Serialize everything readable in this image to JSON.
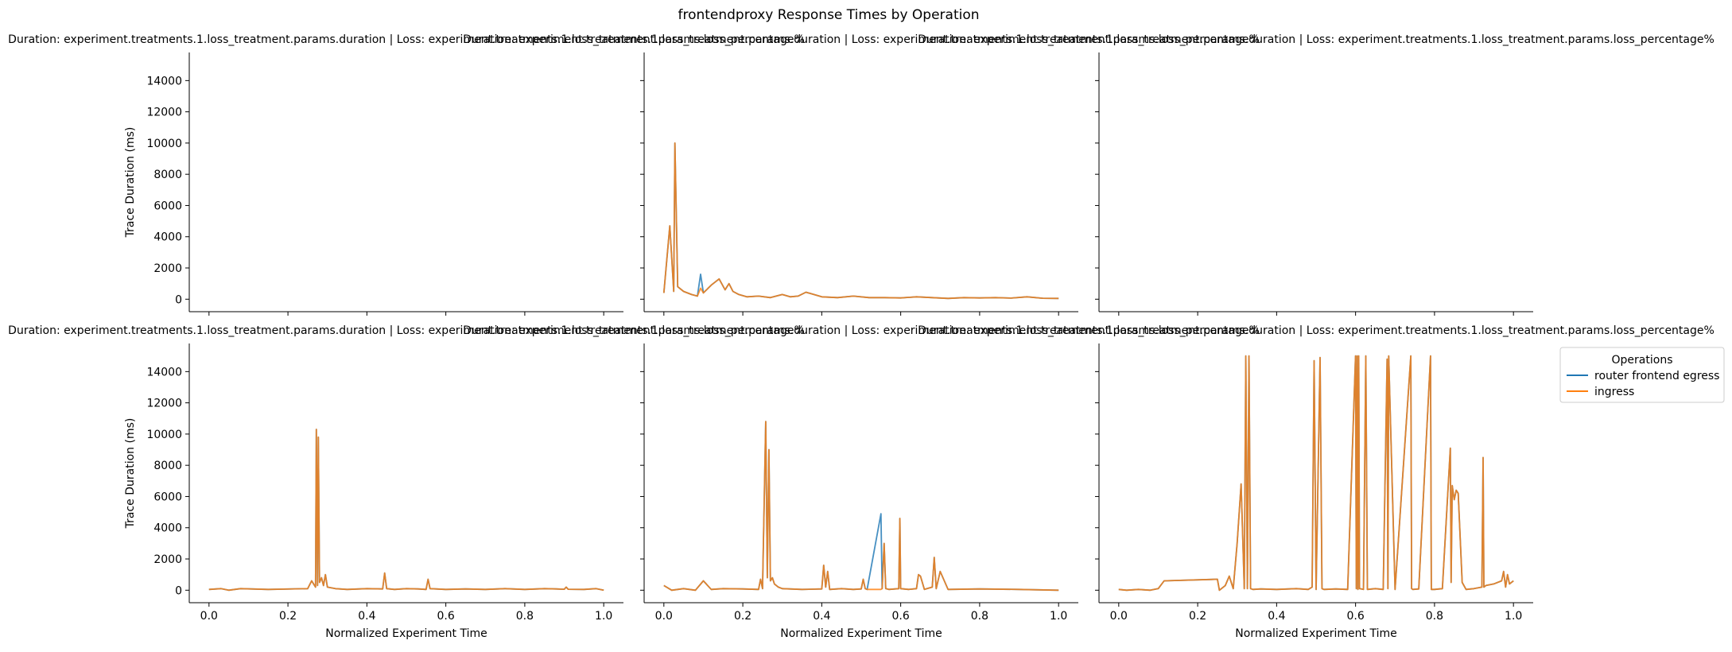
{
  "figure": {
    "suptitle": "frontendproxy Response Times by Operation"
  },
  "legend": {
    "title": "Operations",
    "placement": "right",
    "entries": [
      {
        "label": "router frontend egress",
        "color": "#1f77b4"
      },
      {
        "label": "ingress",
        "color": "#ff7f0e"
      }
    ]
  },
  "axes_common": {
    "xlabel": "Normalized Experiment Time",
    "ylabel": "Trace Duration (ms)",
    "xlim": [
      -0.05,
      1.05
    ],
    "ylim": [
      -800,
      15800
    ],
    "xticks": [
      0.0,
      0.2,
      0.4,
      0.6,
      0.8,
      1.0
    ],
    "xtick_labels": [
      "0.0",
      "0.2",
      "0.4",
      "0.6",
      "0.8",
      "1.0"
    ],
    "yticks": [
      0,
      2000,
      4000,
      6000,
      8000,
      10000,
      12000,
      14000
    ],
    "ytick_labels": [
      "0",
      "2000",
      "4000",
      "6000",
      "8000",
      "10000",
      "12000",
      "14000"
    ],
    "grid": false
  },
  "chart_data": [
    {
      "type": "line",
      "title": "Duration: experiment.treatments.1.loss_treatment.params.duration | Loss: experiment.treatments.1.loss_treatment.params.loss_percentage%",
      "series": []
    },
    {
      "type": "line",
      "title": "Duration: experiment.treatments.1.loss_treatment.params.duration | Loss: experiment.treatments.1.loss_treatment.params.loss_percentage%",
      "series": [
        {
          "name": "router frontend egress",
          "x": [
            0.0,
            0.015,
            0.025,
            0.028,
            0.035,
            0.05,
            0.07,
            0.085,
            0.093,
            0.1,
            0.12,
            0.14,
            0.155,
            0.165,
            0.175,
            0.19,
            0.21,
            0.24,
            0.27,
            0.3,
            0.32,
            0.34,
            0.36,
            0.4,
            0.44,
            0.48,
            0.52,
            0.56,
            0.6,
            0.64,
            0.68,
            0.72,
            0.76,
            0.8,
            0.84,
            0.88,
            0.92,
            0.96,
            1.0
          ],
          "y": [
            400,
            4700,
            500,
            10000,
            800,
            500,
            300,
            200,
            1600,
            400,
            900,
            1300,
            600,
            1000,
            500,
            300,
            150,
            200,
            100,
            300,
            150,
            200,
            450,
            150,
            100,
            200,
            100,
            100,
            80,
            150,
            100,
            50,
            100,
            80,
            100,
            70,
            150,
            60,
            50
          ]
        },
        {
          "name": "ingress",
          "x": [
            0.0,
            0.015,
            0.025,
            0.028,
            0.035,
            0.05,
            0.07,
            0.085,
            0.093,
            0.1,
            0.12,
            0.14,
            0.155,
            0.165,
            0.175,
            0.19,
            0.21,
            0.24,
            0.27,
            0.3,
            0.32,
            0.34,
            0.36,
            0.4,
            0.44,
            0.48,
            0.52,
            0.56,
            0.6,
            0.64,
            0.68,
            0.72,
            0.76,
            0.8,
            0.84,
            0.88,
            0.92,
            0.96,
            1.0
          ],
          "y": [
            400,
            4700,
            500,
            10000,
            800,
            500,
            300,
            200,
            700,
            400,
            900,
            1300,
            600,
            1000,
            500,
            300,
            150,
            200,
            100,
            300,
            150,
            200,
            450,
            150,
            100,
            200,
            100,
            100,
            80,
            150,
            100,
            50,
            100,
            80,
            100,
            70,
            150,
            60,
            50
          ]
        }
      ]
    },
    {
      "type": "line",
      "title": "Duration: experiment.treatments.1.loss_treatment.params.duration | Loss: experiment.treatments.1.loss_treatment.params.loss_percentage%",
      "series": []
    },
    {
      "type": "line",
      "title": "Duration: experiment.treatments.1.loss_treatment.params.duration | Loss: experiment.treatments.1.loss_treatment.params.loss_percentage%",
      "series": [
        {
          "name": "router frontend egress",
          "x": [
            0.0,
            0.03,
            0.05,
            0.08,
            0.15,
            0.25,
            0.26,
            0.27,
            0.272,
            0.275,
            0.277,
            0.28,
            0.285,
            0.29,
            0.295,
            0.3,
            0.32,
            0.35,
            0.4,
            0.44,
            0.445,
            0.45,
            0.47,
            0.5,
            0.53,
            0.55,
            0.555,
            0.56,
            0.6,
            0.65,
            0.7,
            0.75,
            0.8,
            0.85,
            0.88,
            0.9,
            0.905,
            0.91,
            0.95,
            0.98,
            1.0
          ],
          "y": [
            50,
            100,
            0,
            100,
            50,
            100,
            600,
            200,
            10300,
            300,
            9800,
            500,
            800,
            300,
            1000,
            200,
            100,
            50,
            100,
            80,
            1100,
            100,
            50,
            100,
            80,
            50,
            700,
            100,
            50,
            80,
            50,
            100,
            50,
            100,
            80,
            60,
            200,
            60,
            50,
            100,
            0
          ]
        },
        {
          "name": "ingress",
          "x": [
            0.0,
            0.03,
            0.05,
            0.08,
            0.15,
            0.25,
            0.26,
            0.27,
            0.272,
            0.275,
            0.277,
            0.28,
            0.285,
            0.29,
            0.295,
            0.3,
            0.32,
            0.35,
            0.4,
            0.44,
            0.445,
            0.45,
            0.47,
            0.5,
            0.53,
            0.55,
            0.555,
            0.56,
            0.6,
            0.65,
            0.7,
            0.75,
            0.8,
            0.85,
            0.88,
            0.9,
            0.905,
            0.91,
            0.95,
            0.98,
            1.0
          ],
          "y": [
            50,
            100,
            0,
            100,
            50,
            100,
            600,
            200,
            10300,
            300,
            9800,
            500,
            800,
            300,
            1000,
            200,
            100,
            50,
            100,
            80,
            1100,
            100,
            50,
            100,
            80,
            50,
            700,
            100,
            50,
            80,
            50,
            100,
            50,
            100,
            80,
            60,
            200,
            60,
            50,
            100,
            0
          ]
        }
      ]
    },
    {
      "type": "line",
      "title": "Duration: experiment.treatments.1.loss_treatment.params.duration | Loss: experiment.treatments.1.loss_treatment.params.loss_percentage%",
      "series": [
        {
          "name": "router frontend egress",
          "x": [
            0.0,
            0.02,
            0.05,
            0.08,
            0.1,
            0.12,
            0.15,
            0.2,
            0.24,
            0.245,
            0.25,
            0.258,
            0.262,
            0.266,
            0.27,
            0.275,
            0.28,
            0.29,
            0.3,
            0.35,
            0.4,
            0.405,
            0.41,
            0.415,
            0.42,
            0.45,
            0.48,
            0.5,
            0.505,
            0.51,
            0.515,
            0.55,
            0.553,
            0.558,
            0.562,
            0.57,
            0.595,
            0.598,
            0.6,
            0.62,
            0.64,
            0.645,
            0.65,
            0.66,
            0.68,
            0.685,
            0.69,
            0.7,
            0.72,
            0.8,
            0.9,
            1.0
          ],
          "y": [
            300,
            0,
            100,
            0,
            600,
            50,
            100,
            80,
            50,
            700,
            100,
            10800,
            800,
            9000,
            600,
            800,
            400,
            200,
            100,
            50,
            80,
            1600,
            200,
            1200,
            50,
            100,
            50,
            80,
            700,
            100,
            50,
            4900,
            100,
            3000,
            100,
            50,
            100,
            4600,
            100,
            50,
            100,
            1000,
            900,
            50,
            200,
            2100,
            100,
            1200,
            50,
            80,
            50,
            0
          ]
        },
        {
          "name": "ingress",
          "x": [
            0.0,
            0.02,
            0.05,
            0.08,
            0.1,
            0.12,
            0.15,
            0.2,
            0.24,
            0.245,
            0.25,
            0.258,
            0.262,
            0.266,
            0.27,
            0.275,
            0.28,
            0.29,
            0.3,
            0.35,
            0.4,
            0.405,
            0.41,
            0.415,
            0.42,
            0.45,
            0.48,
            0.5,
            0.505,
            0.51,
            0.515,
            0.55,
            0.553,
            0.558,
            0.562,
            0.57,
            0.595,
            0.598,
            0.6,
            0.62,
            0.64,
            0.645,
            0.65,
            0.66,
            0.68,
            0.685,
            0.69,
            0.7,
            0.72,
            0.8,
            0.9,
            1.0
          ],
          "y": [
            300,
            0,
            100,
            0,
            600,
            50,
            100,
            80,
            50,
            700,
            100,
            10800,
            800,
            9000,
            600,
            800,
            400,
            200,
            100,
            50,
            80,
            1600,
            200,
            1200,
            50,
            100,
            50,
            80,
            700,
            100,
            50,
            50,
            100,
            3000,
            100,
            50,
            100,
            4600,
            100,
            50,
            100,
            1000,
            900,
            50,
            200,
            2100,
            100,
            1200,
            50,
            80,
            50,
            0
          ]
        }
      ]
    },
    {
      "type": "line",
      "title": "Duration: experiment.treatments.1.loss_treatment.params.duration | Loss: experiment.treatments.1.loss_treatment.params.loss_percentage%",
      "series": [
        {
          "name": "router frontend egress",
          "x": [
            0.0,
            0.02,
            0.05,
            0.08,
            0.1,
            0.115,
            0.25,
            0.255,
            0.27,
            0.28,
            0.29,
            0.3,
            0.31,
            0.318,
            0.322,
            0.326,
            0.33,
            0.334,
            0.34,
            0.36,
            0.4,
            0.45,
            0.48,
            0.49,
            0.495,
            0.5,
            0.51,
            0.515,
            0.52,
            0.55,
            0.58,
            0.6,
            0.602,
            0.604,
            0.606,
            0.608,
            0.61,
            0.62,
            0.626,
            0.63,
            0.65,
            0.67,
            0.68,
            0.682,
            0.684,
            0.7,
            0.74,
            0.742,
            0.745,
            0.76,
            0.79,
            0.792,
            0.795,
            0.8,
            0.82,
            0.84,
            0.842,
            0.845,
            0.85,
            0.855,
            0.86,
            0.87,
            0.88,
            0.9,
            0.92,
            0.923,
            0.925,
            0.93,
            0.95,
            0.97,
            0.975,
            0.98,
            0.985,
            0.99,
            1.0
          ],
          "y": [
            50,
            0,
            50,
            0,
            100,
            600,
            700,
            0,
            300,
            900,
            100,
            3000,
            6800,
            100,
            15000,
            100,
            15000,
            100,
            50,
            80,
            50,
            100,
            50,
            200,
            14700,
            50,
            14900,
            100,
            50,
            80,
            50,
            15000,
            100,
            15000,
            50,
            15000,
            100,
            50,
            15000,
            50,
            100,
            50,
            14800,
            100,
            15000,
            50,
            15000,
            100,
            50,
            80,
            15000,
            50,
            50,
            50,
            100,
            9100,
            500,
            6700,
            5800,
            6400,
            6200,
            500,
            50,
            100,
            200,
            8500,
            200,
            300,
            400,
            600,
            1200,
            200,
            1000,
            400,
            600
          ]
        },
        {
          "name": "ingress",
          "x": [
            0.0,
            0.02,
            0.05,
            0.08,
            0.1,
            0.115,
            0.25,
            0.255,
            0.27,
            0.28,
            0.29,
            0.3,
            0.31,
            0.318,
            0.322,
            0.326,
            0.33,
            0.334,
            0.34,
            0.36,
            0.4,
            0.45,
            0.48,
            0.49,
            0.495,
            0.5,
            0.51,
            0.515,
            0.52,
            0.55,
            0.58,
            0.6,
            0.602,
            0.604,
            0.606,
            0.608,
            0.61,
            0.62,
            0.626,
            0.63,
            0.65,
            0.67,
            0.68,
            0.682,
            0.684,
            0.7,
            0.74,
            0.742,
            0.745,
            0.76,
            0.79,
            0.792,
            0.795,
            0.8,
            0.82,
            0.84,
            0.842,
            0.845,
            0.85,
            0.855,
            0.86,
            0.87,
            0.88,
            0.9,
            0.92,
            0.923,
            0.925,
            0.93,
            0.95,
            0.97,
            0.975,
            0.98,
            0.985,
            0.99,
            1.0
          ],
          "y": [
            50,
            0,
            50,
            0,
            100,
            600,
            700,
            0,
            300,
            900,
            100,
            3000,
            6800,
            100,
            15000,
            100,
            15000,
            100,
            50,
            80,
            50,
            100,
            50,
            200,
            14700,
            50,
            14900,
            100,
            50,
            80,
            50,
            15000,
            100,
            15000,
            50,
            15000,
            100,
            50,
            15000,
            50,
            100,
            50,
            14800,
            100,
            15000,
            50,
            15000,
            100,
            50,
            80,
            15000,
            50,
            50,
            50,
            100,
            9100,
            500,
            6700,
            5800,
            6400,
            6200,
            500,
            50,
            100,
            200,
            8500,
            200,
            300,
            400,
            600,
            1200,
            200,
            1000,
            400,
            600
          ]
        }
      ]
    }
  ]
}
